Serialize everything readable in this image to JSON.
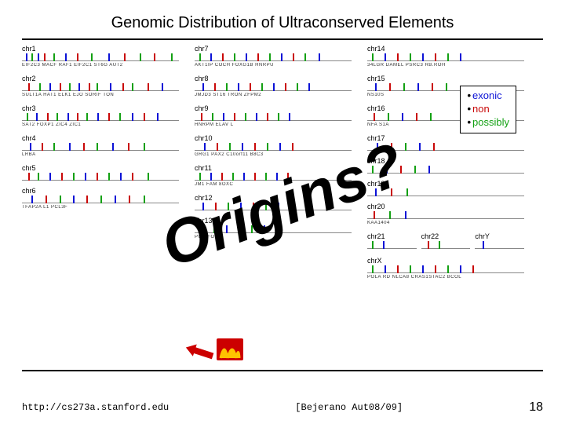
{
  "title": "Genomic Distribution of Ultraconserved Elements",
  "legend": {
    "exonic": {
      "label": "exonic",
      "color": "#0b12d6"
    },
    "non": {
      "label": "non",
      "color": "#c90808"
    },
    "possibly": {
      "label": "possibly",
      "color": "#13a013"
    }
  },
  "overlay_text": "Origins?",
  "footer": {
    "url": "http://cs273a.stanford.edu",
    "ref": "[Bejerano Aut08/09]",
    "page": "18"
  },
  "colors": {
    "exonic": "#0b12d6",
    "non": "#c90808",
    "possibly": "#13a013",
    "axis": "#888888",
    "bg": "#ffffff",
    "logo_bg": "#cc0000",
    "logo_fg": "#ffc300",
    "arrow": "#cc0000"
  },
  "columns": [
    {
      "chroms": [
        {
          "label": "chr1",
          "ticks": [
            [
              5,
              "e"
            ],
            [
              12,
              "p"
            ],
            [
              20,
              "e"
            ],
            [
              28,
              "n"
            ],
            [
              40,
              "p"
            ],
            [
              55,
              "e"
            ],
            [
              70,
              "n"
            ],
            [
              88,
              "p"
            ],
            [
              110,
              "e"
            ],
            [
              130,
              "n"
            ],
            [
              150,
              "p"
            ],
            [
              168,
              "n"
            ],
            [
              190,
              "p"
            ]
          ],
          "genes": "EIF2C3  MACF  RAF1  EIF2C1  ST6G  AUT2"
        },
        {
          "label": "chr2",
          "ticks": [
            [
              8,
              "n"
            ],
            [
              22,
              "p"
            ],
            [
              35,
              "e"
            ],
            [
              48,
              "n"
            ],
            [
              60,
              "p"
            ],
            [
              72,
              "e"
            ],
            [
              85,
              "n"
            ],
            [
              95,
              "p"
            ],
            [
              112,
              "e"
            ],
            [
              128,
              "n"
            ],
            [
              140,
              "p"
            ],
            [
              160,
              "n"
            ],
            [
              178,
              "e"
            ]
          ],
          "genes": "SULT1A  HAT1 ELK1 EJO SORIF TON"
        },
        {
          "label": "chr3",
          "ticks": [
            [
              6,
              "p"
            ],
            [
              18,
              "e"
            ],
            [
              32,
              "n"
            ],
            [
              44,
              "p"
            ],
            [
              58,
              "e"
            ],
            [
              70,
              "n"
            ],
            [
              82,
              "p"
            ],
            [
              96,
              "e"
            ],
            [
              110,
              "n"
            ],
            [
              124,
              "p"
            ],
            [
              140,
              "e"
            ],
            [
              155,
              "n"
            ],
            [
              172,
              "e"
            ]
          ],
          "genes": "SAT2  FOXP1  ZIC4 ZIC1"
        },
        {
          "label": "chr4",
          "ticks": [
            [
              10,
              "e"
            ],
            [
              25,
              "n"
            ],
            [
              40,
              "p"
            ],
            [
              60,
              "e"
            ],
            [
              78,
              "n"
            ],
            [
              95,
              "p"
            ],
            [
              115,
              "e"
            ],
            [
              135,
              "n"
            ],
            [
              155,
              "p"
            ]
          ],
          "genes": "LRBA"
        },
        {
          "label": "chr5",
          "ticks": [
            [
              8,
              "n"
            ],
            [
              20,
              "p"
            ],
            [
              35,
              "e"
            ],
            [
              50,
              "n"
            ],
            [
              65,
              "p"
            ],
            [
              80,
              "e"
            ],
            [
              95,
              "n"
            ],
            [
              110,
              "p"
            ],
            [
              125,
              "e"
            ],
            [
              140,
              "n"
            ],
            [
              160,
              "p"
            ]
          ],
          "genes": ""
        },
        {
          "label": "chr6",
          "ticks": [
            [
              12,
              "e"
            ],
            [
              30,
              "n"
            ],
            [
              48,
              "p"
            ],
            [
              65,
              "e"
            ],
            [
              82,
              "n"
            ],
            [
              100,
              "p"
            ],
            [
              118,
              "e"
            ],
            [
              136,
              "n"
            ],
            [
              155,
              "p"
            ]
          ],
          "genes": "TFAP2A L1  PCL3F"
        }
      ]
    },
    {
      "chroms": [
        {
          "label": "chr7",
          "ticks": [
            [
              6,
              "p"
            ],
            [
              20,
              "e"
            ],
            [
              35,
              "n"
            ],
            [
              50,
              "p"
            ],
            [
              65,
              "e"
            ],
            [
              80,
              "n"
            ],
            [
              95,
              "p"
            ],
            [
              110,
              "e"
            ],
            [
              125,
              "n"
            ],
            [
              140,
              "p"
            ],
            [
              158,
              "e"
            ]
          ],
          "genes": "AKT1IP  COCH FOXG1B  HNRPU"
        },
        {
          "label": "chr8",
          "ticks": [
            [
              10,
              "e"
            ],
            [
              25,
              "n"
            ],
            [
              40,
              "p"
            ],
            [
              55,
              "e"
            ],
            [
              70,
              "n"
            ],
            [
              85,
              "p"
            ],
            [
              100,
              "e"
            ],
            [
              115,
              "n"
            ],
            [
              130,
              "p"
            ],
            [
              145,
              "e"
            ]
          ],
          "genes": "JMJD3  ST16  TRON  ZFPM2"
        },
        {
          "label": "chr9",
          "ticks": [
            [
              8,
              "n"
            ],
            [
              22,
              "p"
            ],
            [
              36,
              "e"
            ],
            [
              50,
              "n"
            ],
            [
              64,
              "p"
            ],
            [
              78,
              "e"
            ],
            [
              92,
              "n"
            ],
            [
              106,
              "p"
            ],
            [
              120,
              "e"
            ]
          ],
          "genes": "HNRPM  ELAV L"
        },
        {
          "label": "chr10",
          "ticks": [
            [
              12,
              "e"
            ],
            [
              28,
              "n"
            ],
            [
              44,
              "p"
            ],
            [
              60,
              "e"
            ],
            [
              76,
              "n"
            ],
            [
              92,
              "p"
            ],
            [
              108,
              "e"
            ],
            [
              124,
              "n"
            ]
          ],
          "genes": "GRG1  PAX2  C10orf11  B8C3"
        },
        {
          "label": "chr11",
          "ticks": [
            [
              6,
              "p"
            ],
            [
              20,
              "e"
            ],
            [
              34,
              "n"
            ],
            [
              48,
              "p"
            ],
            [
              62,
              "e"
            ],
            [
              76,
              "n"
            ],
            [
              90,
              "p"
            ],
            [
              104,
              "e"
            ],
            [
              118,
              "n"
            ]
          ],
          "genes": "JM1 FAM 8OXC"
        },
        {
          "label": "chr12",
          "ticks": [
            [
              10,
              "e"
            ],
            [
              26,
              "n"
            ],
            [
              42,
              "p"
            ],
            [
              58,
              "e"
            ],
            [
              74,
              "n"
            ],
            [
              90,
              "p"
            ],
            [
              106,
              "e"
            ]
          ],
          "genes": ""
        },
        {
          "label": "chr13",
          "ticks": [
            [
              8,
              "n"
            ],
            [
              24,
              "p"
            ],
            [
              40,
              "e"
            ],
            [
              56,
              "n"
            ],
            [
              72,
              "p"
            ],
            [
              88,
              "e"
            ],
            [
              104,
              "n"
            ]
          ],
          "genes": "PCH  FOXL"
        }
      ]
    },
    {
      "chroms": [
        {
          "label": "chr14",
          "ticks": [
            [
              6,
              "p"
            ],
            [
              22,
              "e"
            ],
            [
              38,
              "n"
            ],
            [
              54,
              "p"
            ],
            [
              70,
              "e"
            ],
            [
              86,
              "n"
            ],
            [
              102,
              "p"
            ],
            [
              118,
              "e"
            ]
          ],
          "genes": "34LGR  DAMEL PSRC3 RB.ROH"
        },
        {
          "label": "chr15",
          "ticks": [
            [
              10,
              "e"
            ],
            [
              28,
              "n"
            ],
            [
              46,
              "p"
            ],
            [
              64,
              "e"
            ],
            [
              82,
              "n"
            ],
            [
              100,
              "p"
            ]
          ],
          "genes": "NS10S"
        },
        {
          "label": "chr16",
          "ticks": [
            [
              8,
              "n"
            ],
            [
              26,
              "p"
            ],
            [
              44,
              "e"
            ],
            [
              62,
              "n"
            ],
            [
              80,
              "p"
            ]
          ],
          "genes": "NFA  S1A"
        },
        {
          "label": "chr17",
          "ticks": [
            [
              12,
              "e"
            ],
            [
              30,
              "n"
            ],
            [
              48,
              "p"
            ],
            [
              66,
              "e"
            ],
            [
              84,
              "n"
            ]
          ],
          "genes": ""
        },
        {
          "label": "chr18",
          "ticks": [
            [
              6,
              "p"
            ],
            [
              24,
              "e"
            ],
            [
              42,
              "n"
            ],
            [
              60,
              "p"
            ],
            [
              78,
              "e"
            ]
          ],
          "genes": ""
        },
        {
          "label": "chr19",
          "ticks": [
            [
              10,
              "e"
            ],
            [
              30,
              "n"
            ],
            [
              50,
              "p"
            ]
          ],
          "genes": ""
        },
        {
          "label": "chr20",
          "ticks": [
            [
              8,
              "n"
            ],
            [
              28,
              "p"
            ],
            [
              48,
              "e"
            ]
          ],
          "genes": "KAA1404"
        },
        {
          "label_row": true,
          "pairs": [
            {
              "label": "chr21",
              "ticks": [
                [
                  6,
                  "p"
                ],
                [
                  20,
                  "e"
                ]
              ]
            },
            {
              "label": "chr22",
              "ticks": [
                [
                  8,
                  "n"
                ],
                [
                  22,
                  "p"
                ]
              ]
            },
            {
              "label": "chrY",
              "ticks": [
                [
                  10,
                  "e"
                ]
              ]
            }
          ]
        },
        {
          "label": "chrX",
          "ticks": [
            [
              6,
              "p"
            ],
            [
              22,
              "e"
            ],
            [
              38,
              "n"
            ],
            [
              54,
              "p"
            ],
            [
              70,
              "e"
            ],
            [
              86,
              "n"
            ],
            [
              102,
              "p"
            ],
            [
              118,
              "e"
            ],
            [
              134,
              "n"
            ]
          ],
          "genes": "POLA RD  NLCA8  CRAS1STAC2  BCOL"
        }
      ]
    }
  ]
}
